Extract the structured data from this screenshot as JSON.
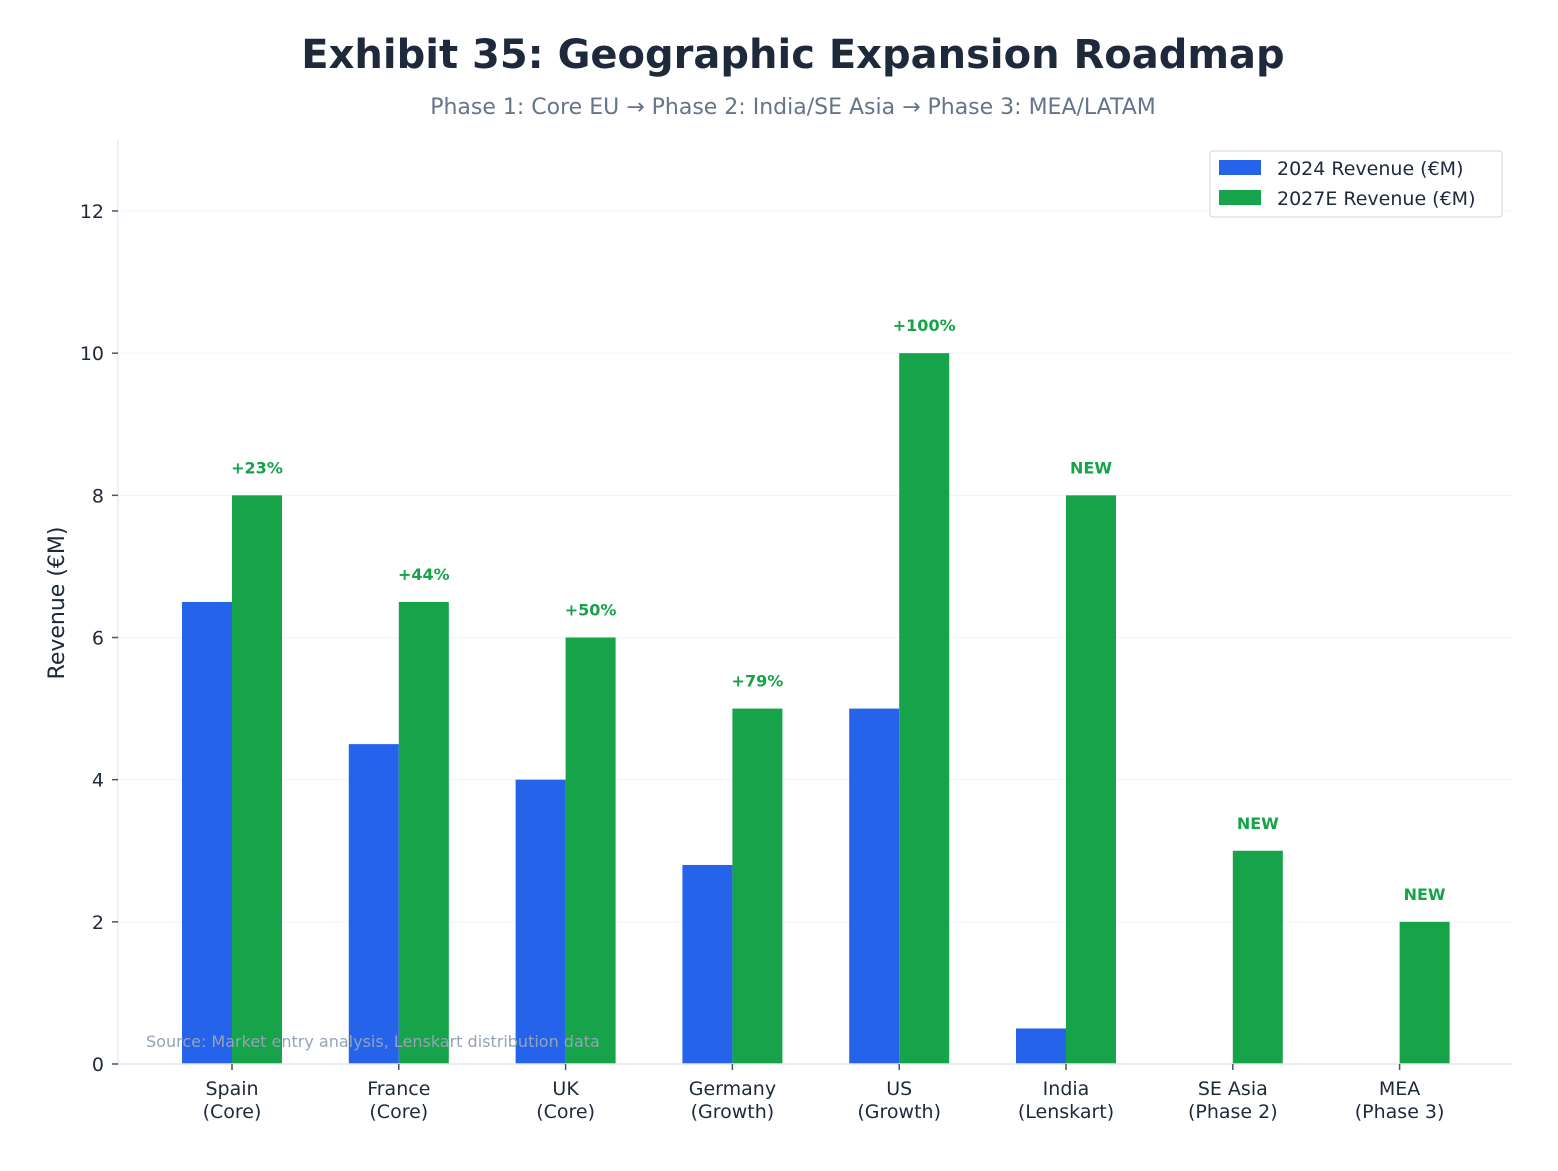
{
  "chart_data": {
    "type": "bar",
    "title": "Exhibit 35: Geographic Expansion Roadmap",
    "subtitle": "Phase 1: Core EU → Phase 2: India/SE Asia → Phase 3: MEA/LATAM",
    "xlabel": "",
    "ylabel": "Revenue (€M)",
    "ylim": [
      0,
      13
    ],
    "yticks": [
      0,
      2,
      4,
      6,
      8,
      10,
      12
    ],
    "grid": true,
    "legend_position": "top-right",
    "categories": [
      [
        "Spain",
        "(Core)"
      ],
      [
        "France",
        "(Core)"
      ],
      [
        "UK",
        "(Core)"
      ],
      [
        "Germany",
        "(Growth)"
      ],
      [
        "US",
        "(Growth)"
      ],
      [
        "India",
        "(Lenskart)"
      ],
      [
        "SE Asia",
        "(Phase 2)"
      ],
      [
        "MEA",
        "(Phase 3)"
      ]
    ],
    "series": [
      {
        "name": "2024 Revenue (€M)",
        "color": "#2563eb",
        "values": [
          6.5,
          4.5,
          4.0,
          2.8,
          5.0,
          0.5,
          0,
          0
        ]
      },
      {
        "name": "2027E Revenue (€M)",
        "color": "#16a34a",
        "values": [
          8.0,
          6.5,
          6.0,
          5.0,
          10.0,
          8.0,
          3.0,
          2.0
        ]
      }
    ],
    "annotations": [
      "+23%",
      "+44%",
      "+50%",
      "+79%",
      "+100%",
      "NEW",
      "NEW",
      "NEW"
    ],
    "annotation_color": "#16a34a",
    "source": "Source: Market entry analysis, Lenskart distribution data"
  }
}
